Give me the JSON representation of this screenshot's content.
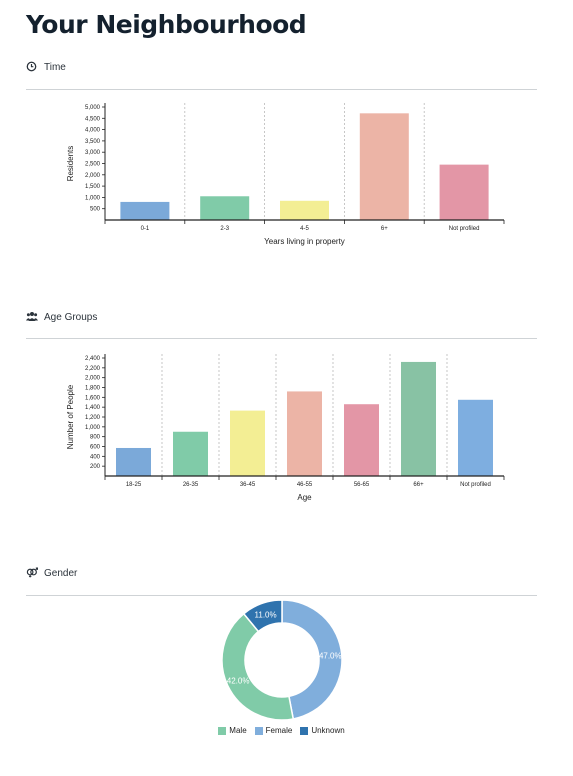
{
  "page": {
    "title": "Your Neighbourhood"
  },
  "sections": {
    "time": {
      "heading": "Time",
      "icon": "clock-icon"
    },
    "age": {
      "heading": "Age Groups",
      "icon": "users-icon"
    },
    "gender": {
      "heading": "Gender",
      "icon": "gender-icon"
    }
  },
  "chart_data": [
    {
      "id": "time",
      "type": "bar",
      "categories": [
        "0-1",
        "2-3",
        "4-5",
        "6+",
        "Not profiled"
      ],
      "values": [
        800,
        1050,
        850,
        4720,
        2450
      ],
      "colors": [
        "#7ba9d9",
        "#80cba8",
        "#f3ee94",
        "#ecb4a6",
        "#e396a6"
      ],
      "xlabel": "Years living in property",
      "ylabel": "Residents",
      "yticks": [
        500,
        1000,
        1500,
        2000,
        2500,
        3000,
        3500,
        4000,
        4500,
        5000
      ],
      "ytick_labels": [
        "500",
        "1,000",
        "1,500",
        "2,000",
        "2,500",
        "3,000",
        "3,500",
        "4,000",
        "4,500",
        "5,000"
      ],
      "ylim": [
        0,
        5000
      ],
      "grid": "vertical-dashed"
    },
    {
      "id": "age",
      "type": "bar",
      "categories": [
        "18-25",
        "26-35",
        "36-45",
        "46-55",
        "56-65",
        "66+",
        "Not profiled"
      ],
      "values": [
        570,
        900,
        1330,
        1720,
        1460,
        2320,
        1550
      ],
      "colors": [
        "#7ba9d9",
        "#80cba8",
        "#f3ee94",
        "#ecb4a6",
        "#e396a6",
        "#88c2a4",
        "#7eaee0"
      ],
      "xlabel": "Age",
      "ylabel": "Number of People",
      "yticks": [
        200,
        400,
        600,
        800,
        1000,
        1200,
        1400,
        1600,
        1800,
        2000,
        2200,
        2400
      ],
      "ytick_labels": [
        "200",
        "400",
        "600",
        "800",
        "1,000",
        "1,200",
        "1,400",
        "1,600",
        "1,800",
        "2,000",
        "2,200",
        "2,400"
      ],
      "ylim": [
        0,
        2400
      ],
      "grid": "vertical-dashed"
    },
    {
      "id": "gender",
      "type": "pie",
      "labels": [
        "Female",
        "Male",
        "Unknown"
      ],
      "values": [
        47.0,
        42.0,
        11.0
      ],
      "value_labels": [
        "47.0%",
        "42.0%",
        "11.0%"
      ],
      "colors": [
        "#80aedc",
        "#80cba8",
        "#2f73ae"
      ],
      "legend": [
        "Male",
        "Female",
        "Unknown"
      ],
      "legend_colors": [
        "#80cba8",
        "#80aedc",
        "#2f73ae"
      ],
      "legend_position": "bottom"
    }
  ]
}
